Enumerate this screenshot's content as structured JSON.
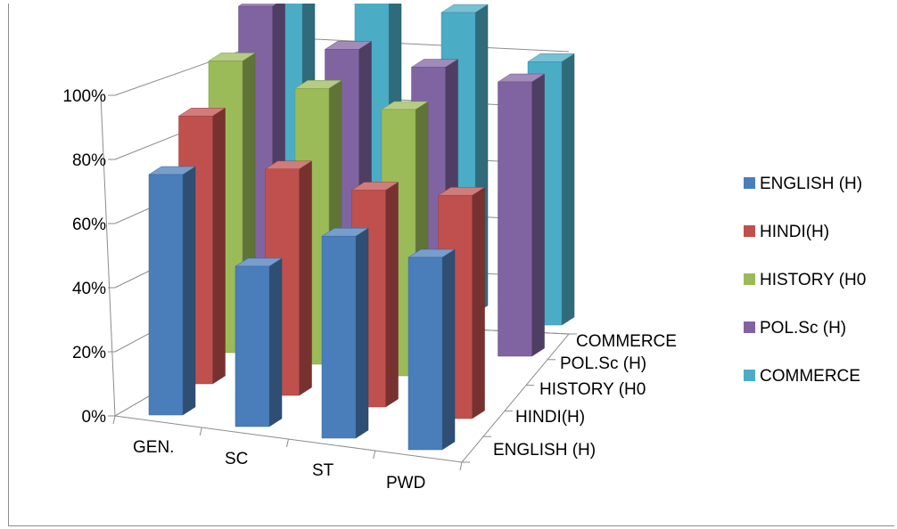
{
  "chart_data": {
    "type": "bar",
    "subtype": "3d-column",
    "categories": [
      "GEN.",
      "SC",
      "ST",
      "PWD"
    ],
    "y_ticks": [
      "0%",
      "20%",
      "40%",
      "60%",
      "80%",
      "100%"
    ],
    "ylim": [
      0,
      100
    ],
    "grid": true,
    "legend_position": "right",
    "series": [
      {
        "name": "ENGLISH (H)",
        "values": [
          75,
          50,
          63,
          60
        ],
        "color": "#4a7ebb"
      },
      {
        "name": "HINDI(H)",
        "values": [
          84,
          71,
          68,
          70
        ],
        "color": "#c0504d"
      },
      {
        "name": "HISTORY (H0",
        "values": [
          92,
          87,
          84,
          null
        ],
        "color": "#9bbb59"
      },
      {
        "name": "POL.Sc (H)",
        "values": [
          100,
          90,
          88,
          87
        ],
        "color": "#8064a2"
      },
      {
        "name": "COMMERCE",
        "values": [
          100,
          97,
          96,
          84
        ],
        "color": "#4bacc6"
      }
    ]
  }
}
